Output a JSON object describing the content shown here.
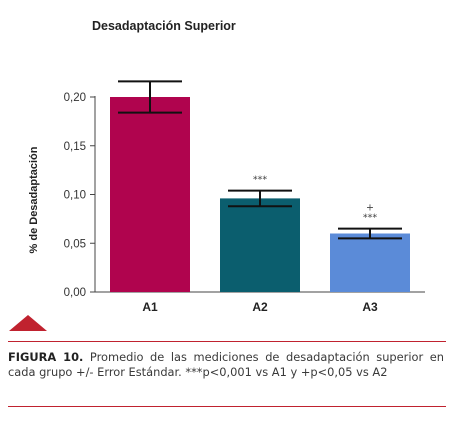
{
  "chart_data": {
    "type": "bar",
    "title": "Desadaptación Superior",
    "ylabel": "% de Desadaptación",
    "xlabel": "",
    "categories": [
      "A1",
      "A2",
      "A3"
    ],
    "values": [
      0.2,
      0.096,
      0.06
    ],
    "errors": [
      0.016,
      0.008,
      0.005
    ],
    "bar_colors": [
      "#b0044e",
      "#0b5e6e",
      "#5b8bd8"
    ],
    "annotations": [
      {
        "category": "A2",
        "lines": [
          "***"
        ]
      },
      {
        "category": "A3",
        "lines": [
          "+",
          "***"
        ]
      }
    ],
    "ylim": [
      0,
      0.2
    ],
    "yticks": [
      0.0,
      0.05,
      0.1,
      0.15,
      0.2
    ],
    "ytick_labels": [
      "0,00",
      "0,05",
      "0,10",
      "0,15",
      "0,20"
    ],
    "grid": false,
    "legend": "none"
  },
  "caption": {
    "label": "FIGURA 10.",
    "text": "Promedio de las mediciones de desadaptación superior en cada grupo +/- Error Estándar. ***p<0,001 vs A1 y +p<0,05 vs A2"
  },
  "colors": {
    "accent": "#c0222f",
    "axis": "#444444"
  }
}
